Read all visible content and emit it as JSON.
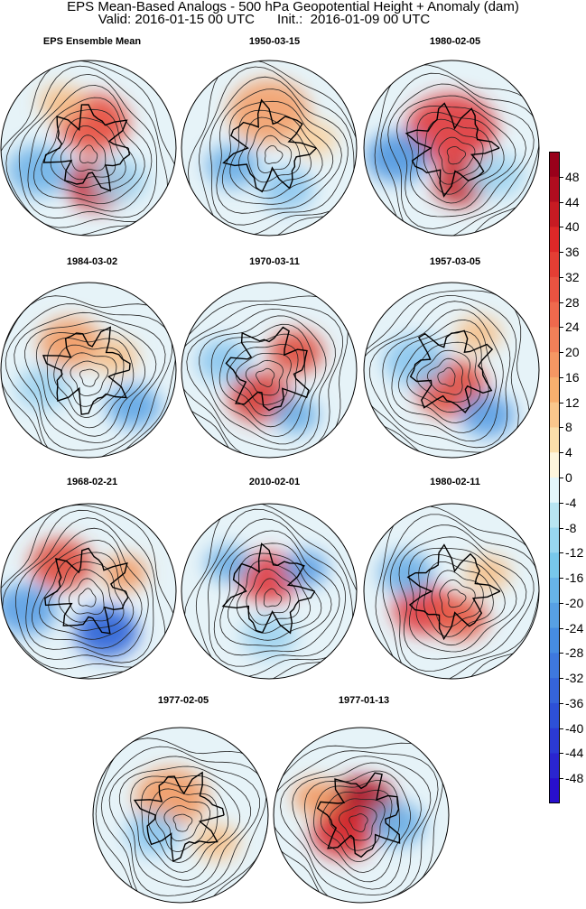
{
  "header": {
    "title": "EPS Mean-Based Analogs - 500 hPa Geopotential Height + Anomaly (dam)",
    "subtitle": "Valid: 2016-01-15 00 UTC      Init.:  2016-01-09 00 UTC"
  },
  "panels": [
    {
      "label": "EPS Ensemble Mean"
    },
    {
      "label": "1950-03-15"
    },
    {
      "label": "1980-02-05"
    },
    {
      "label": "1984-03-02"
    },
    {
      "label": "1970-03-11"
    },
    {
      "label": "1957-03-05"
    },
    {
      "label": "1968-02-21"
    },
    {
      "label": "2010-02-01"
    },
    {
      "label": "1980-02-11"
    },
    {
      "label": "1977-02-05"
    },
    {
      "label": "1977-01-13"
    }
  ],
  "colorbar": {
    "labels": [
      "48",
      "44",
      "40",
      "36",
      "32",
      "28",
      "24",
      "20",
      "16",
      "12",
      "8",
      "4",
      "0",
      "-4",
      "-8",
      "-12",
      "-16",
      "-20",
      "-24",
      "-28",
      "-32",
      "-36",
      "-40",
      "-44",
      "-48"
    ],
    "colors": {
      "pos_max": "#99001a",
      "pos_high": "#e03030",
      "pos_mid": "#f59a5a",
      "pos_low": "#fbe7b0",
      "zero": "#ffffff",
      "neg_low": "#c8ecf4",
      "neg_mid": "#5aaee8",
      "neg_high": "#2a5fd6",
      "neg_max": "#2b0fd0"
    }
  }
}
